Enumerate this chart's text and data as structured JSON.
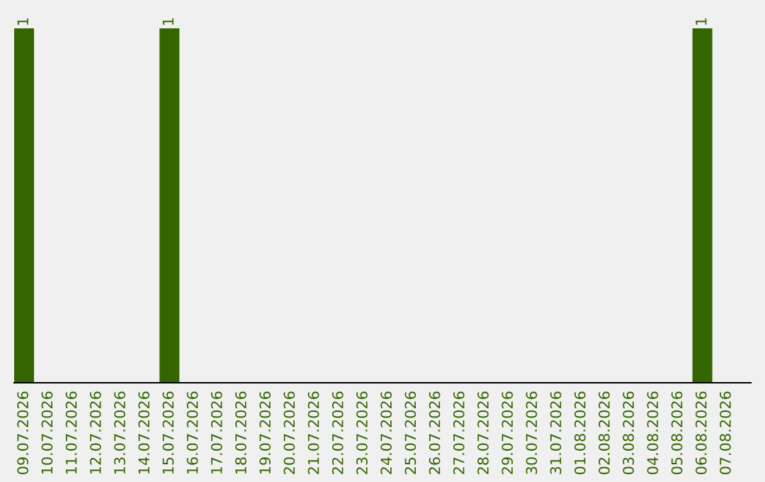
{
  "chart_data": {
    "type": "bar",
    "categories": [
      "09.07.2026",
      "10.07.2026",
      "11.07.2026",
      "12.07.2026",
      "13.07.2026",
      "14.07.2026",
      "15.07.2026",
      "16.07.2026",
      "17.07.2026",
      "18.07.2026",
      "19.07.2026",
      "20.07.2026",
      "21.07.2026",
      "22.07.2026",
      "23.07.2026",
      "24.07.2026",
      "25.07.2026",
      "26.07.2026",
      "27.07.2026",
      "28.07.2026",
      "29.07.2026",
      "30.07.2026",
      "31.07.2026",
      "01.08.2026",
      "02.08.2026",
      "03.08.2026",
      "04.08.2026",
      "05.08.2026",
      "06.08.2026",
      "07.08.2026"
    ],
    "values": [
      1,
      0,
      0,
      0,
      0,
      0,
      1,
      0,
      0,
      0,
      0,
      0,
      0,
      0,
      0,
      0,
      0,
      0,
      0,
      0,
      0,
      0,
      0,
      0,
      0,
      0,
      0,
      0,
      1,
      0
    ],
    "value_labels": [
      "1",
      null,
      null,
      null,
      null,
      null,
      "1",
      null,
      null,
      null,
      null,
      null,
      null,
      null,
      null,
      null,
      null,
      null,
      null,
      null,
      null,
      null,
      null,
      null,
      null,
      null,
      null,
      null,
      "1",
      null
    ],
    "color": "#336600",
    "grid": false,
    "legend": false
  }
}
